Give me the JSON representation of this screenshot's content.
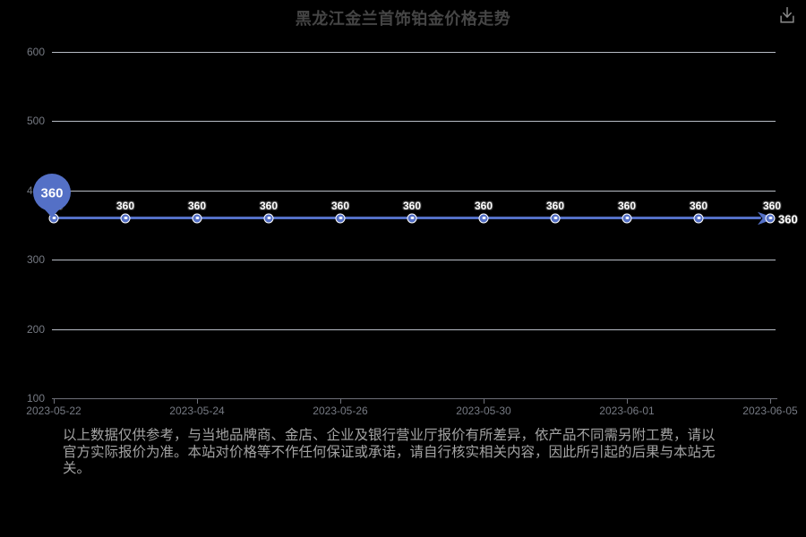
{
  "header": {
    "title": "黑龙江金兰首饰铂金价格走势"
  },
  "toolbar": {
    "download_icon": "download-icon"
  },
  "chart_data": {
    "type": "line",
    "title": "黑龙江金兰首饰铂金价格走势",
    "values": [
      360,
      360,
      360,
      360,
      360,
      360,
      360,
      360,
      360,
      360,
      360
    ],
    "x_tick_labels": [
      "2023-05-22",
      "2023-05-24",
      "2023-05-26",
      "2023-05-30",
      "2023-06-01",
      "2023-06-05"
    ],
    "y_ticks": [
      100,
      200,
      300,
      400,
      500,
      600
    ],
    "ylim": [
      100,
      600
    ],
    "grid": true,
    "legend": false,
    "line_color": "#5470C6",
    "marker_pin": {
      "point_index": 0,
      "label": "360"
    },
    "end_label": "360",
    "line_has_end_arrow": true
  },
  "footer": {
    "disclaimer_lines": [
      "以上数据仅供参考，与当地品牌商、金店、企业及银行营业厅报价有所差异，依产品不同需另附工费，请以",
      "官方实际报价为准。本站对价格等不作任何保证或承诺，请自行核实相关内容，因此所引起的后果与本站无",
      "关。"
    ]
  },
  "colors": {
    "background": "#000000",
    "line": "#5470C6",
    "grid_line": "#E0E6F1",
    "axis_line": "#6E7079",
    "axis_label": "#767A83",
    "title": "#454545",
    "point_label": "#FFFFFF",
    "disclaimer": "#A3A3A3",
    "icon": "#8C8C8C"
  }
}
